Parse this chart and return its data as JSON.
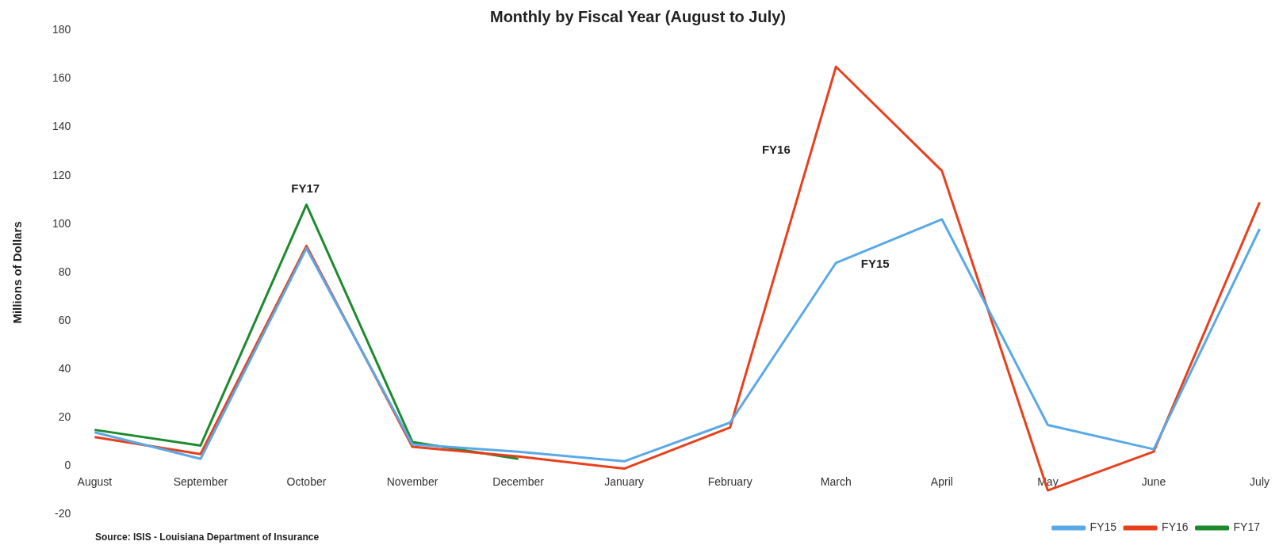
{
  "chart_data": {
    "type": "line",
    "title": "Monthly by Fiscal Year (August to July)",
    "ylabel": "Millions of Dollars",
    "categories": [
      "August",
      "September",
      "October",
      "November",
      "December",
      "January",
      "February",
      "March",
      "April",
      "May",
      "June",
      "July"
    ],
    "series": [
      {
        "name": "FY15",
        "color": "#5aa9e6",
        "values": [
          14,
          3,
          90,
          9,
          6,
          2,
          18,
          84,
          102,
          17,
          7,
          98
        ]
      },
      {
        "name": "FY16",
        "color": "#e8401c",
        "values": [
          12,
          5,
          91,
          8,
          4,
          -1,
          16,
          165,
          122,
          -10,
          6,
          109
        ]
      },
      {
        "name": "FY17",
        "color": "#1e8a2e",
        "values": [
          15,
          8.5,
          108,
          10,
          3,
          null,
          null,
          null,
          null,
          null,
          null,
          null
        ]
      }
    ],
    "ylim": [
      -20,
      180
    ],
    "yticks": [
      -20,
      0,
      20,
      40,
      60,
      80,
      100,
      120,
      140,
      160,
      180
    ],
    "grid": false,
    "legend": "bottom right",
    "marker": "none",
    "line_style": "solid",
    "annotations": [
      "FY17",
      "FY16",
      "FY15",
      "Source: ISIS - Louisiana Department of Insurance"
    ]
  }
}
